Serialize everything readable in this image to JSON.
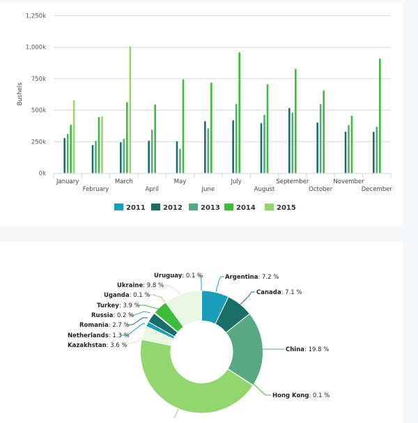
{
  "chart_data": [
    {
      "type": "bar",
      "title": "",
      "xlabel": "",
      "ylabel": "Bushels",
      "ylim": [
        0,
        1250000
      ],
      "yticks": [
        0,
        250000,
        500000,
        750000,
        1000000,
        1250000
      ],
      "ytick_labels": [
        "0k",
        "250k",
        "500k",
        "750k",
        "1,000k",
        "1,250k"
      ],
      "grid": true,
      "legend_position": "bottom",
      "categories": [
        "January",
        "February",
        "March",
        "April",
        "May",
        "June",
        "July",
        "August",
        "September",
        "October",
        "November",
        "December"
      ],
      "series": [
        {
          "name": "2011",
          "color": "#1b9fb8",
          "values": [
            null,
            null,
            null,
            null,
            null,
            null,
            null,
            null,
            null,
            null,
            null,
            null
          ]
        },
        {
          "name": "2012",
          "color": "#1a6e6a",
          "values": [
            280000,
            224000,
            246000,
            258000,
            254000,
            413000,
            420000,
            398000,
            518000,
            403000,
            330000,
            330000
          ]
        },
        {
          "name": "2013",
          "color": "#58a981",
          "values": [
            313000,
            258000,
            274000,
            346000,
            195000,
            356000,
            550000,
            463000,
            481000,
            550000,
            383000,
            370000
          ]
        },
        {
          "name": "2014",
          "color": "#3dbb3b",
          "values": [
            385000,
            446000,
            564000,
            546000,
            745000,
            719000,
            960000,
            706000,
            828000,
            657000,
            457000,
            911000
          ]
        },
        {
          "name": "2015",
          "color": "#92d76e",
          "values": [
            579000,
            451000,
            1006000,
            null,
            null,
            null,
            null,
            null,
            null,
            null,
            null,
            null
          ]
        }
      ]
    },
    {
      "type": "pie",
      "title": "",
      "donut": true,
      "slices": [
        {
          "name": "Argentina",
          "label": "Argentina",
          "value": 7.2,
          "value_label": "7.2 %",
          "color": "#1b9fb8"
        },
        {
          "name": "Canada",
          "label": "Canada",
          "value": 7.1,
          "value_label": "7.1 %",
          "color": "#1a6e6a"
        },
        {
          "name": "China",
          "label": "China",
          "value": 19.8,
          "value_label": "19.8 %",
          "color": "#58a981"
        },
        {
          "name": "Hong Kong",
          "label": "Hong Kong",
          "value": 0.1,
          "value_label": "0.1 %",
          "color": "#3dbb3b"
        },
        {
          "name": "",
          "label": "",
          "value": 44.0,
          "value_label": "",
          "color": "#92d76e"
        },
        {
          "name": "Kazakhstan",
          "label": "Kazakhstan",
          "value": 3.6,
          "value_label": "3.6 %",
          "color": "#e9f6e2"
        },
        {
          "name": "Netherlands",
          "label": "Netherlands",
          "value": 1.3,
          "value_label": "1.3 %",
          "color": "#1b9fb8"
        },
        {
          "name": "Romania",
          "label": "Romania",
          "value": 2.7,
          "value_label": "2.7 %",
          "color": "#1a6e6a"
        },
        {
          "name": "Russia",
          "label": "Russia",
          "value": 0.2,
          "value_label": "0.2 %",
          "color": "#58a981"
        },
        {
          "name": "Turkey",
          "label": "Turkey",
          "value": 3.9,
          "value_label": "3.9 %",
          "color": "#3dbb3b"
        },
        {
          "name": "Uganda",
          "label": "Uganda",
          "value": 0.1,
          "value_label": "0.1 %",
          "color": "#92d76e"
        },
        {
          "name": "Ukraine",
          "label": "Ukraine",
          "value": 9.8,
          "value_label": "9.8 %",
          "color": "#e9f6e2"
        },
        {
          "name": "Uruguay",
          "label": "Uruguay",
          "value": 0.1,
          "value_label": "0.1 %",
          "color": "#1b9fb8"
        }
      ]
    }
  ]
}
